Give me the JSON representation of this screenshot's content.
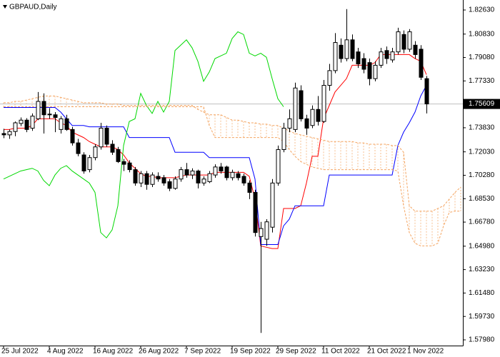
{
  "chart_data": {
    "type": "candlestick",
    "title": "GBPAUD,Daily",
    "categories": [
      "25 Jul 2022",
      null,
      null,
      null,
      null,
      null,
      null,
      null,
      "4 Aug 2022",
      null,
      null,
      null,
      null,
      null,
      null,
      null,
      "16 Aug 2022",
      null,
      null,
      null,
      null,
      null,
      null,
      null,
      "26 Aug 2022",
      null,
      null,
      null,
      null,
      null,
      null,
      null,
      "7 Sep 2022",
      null,
      null,
      null,
      null,
      null,
      null,
      null,
      "19 Sep 2022",
      null,
      null,
      null,
      null,
      null,
      null,
      null,
      "29 Sep 2022",
      null,
      null,
      null,
      null,
      null,
      null,
      null,
      "11 Oct 2022",
      null,
      null,
      null,
      null,
      null,
      null,
      null,
      "21 Oct 2022",
      null,
      null,
      null,
      null,
      null,
      null,
      "1 Nov 2022",
      null,
      null,
      null,
      null,
      null,
      null,
      null,
      null,
      null
    ],
    "open": [
      1.734,
      1.733,
      1.7355,
      1.7415,
      1.744,
      1.738,
      1.745,
      1.758,
      1.748,
      1.748,
      1.737,
      1.745,
      1.737,
      1.727,
      1.718,
      1.707,
      1.716,
      1.724,
      1.738,
      1.726,
      1.722,
      1.713,
      1.712,
      1.707,
      1.697,
      1.704,
      1.696,
      1.702,
      1.701,
      1.698,
      1.693,
      1.7,
      1.707,
      1.703,
      1.706,
      1.697,
      1.698,
      1.703,
      1.709,
      1.709,
      1.701,
      1.704,
      1.702,
      1.697,
      1.69,
      1.657,
      1.655,
      1.664,
      1.697,
      1.722,
      1.738,
      1.737,
      1.766,
      1.745,
      1.74,
      1.752,
      1.743,
      1.77,
      1.781,
      1.8,
      1.79,
      1.804,
      1.795,
      1.79,
      1.787,
      1.775,
      1.785,
      1.796,
      1.789,
      1.795,
      1.808,
      1.797,
      1.8,
      1.797,
      1.775,
      null,
      null,
      null,
      null,
      null,
      null
    ],
    "high": [
      1.7375,
      1.737,
      1.743,
      1.746,
      1.7455,
      1.749,
      1.765,
      1.764,
      1.753,
      1.75,
      1.747,
      1.748,
      1.739,
      1.73,
      1.72,
      1.718,
      1.726,
      1.742,
      1.74,
      1.729,
      1.724,
      1.715,
      1.714,
      1.709,
      1.706,
      1.706,
      1.705,
      1.705,
      1.703,
      1.7,
      1.702,
      1.709,
      1.712,
      1.708,
      1.707,
      1.702,
      1.706,
      1.711,
      1.712,
      1.71,
      1.707,
      1.706,
      1.704,
      1.699,
      1.692,
      1.668,
      1.67,
      1.7,
      1.725,
      1.742,
      1.752,
      1.772,
      1.77,
      1.748,
      1.755,
      1.762,
      1.774,
      1.786,
      1.809,
      1.805,
      1.827,
      1.808,
      1.798,
      1.794,
      1.79,
      1.788,
      1.798,
      1.799,
      1.798,
      1.813,
      1.811,
      1.812,
      1.803,
      1.8,
      1.777,
      null,
      null,
      null,
      null,
      null,
      null
    ],
    "low": [
      1.7305,
      1.73,
      1.732,
      1.7395,
      1.735,
      1.736,
      1.744,
      1.734,
      1.745,
      1.735,
      1.734,
      1.736,
      1.725,
      1.717,
      1.704,
      1.705,
      1.714,
      1.722,
      1.724,
      1.718,
      1.712,
      1.706,
      1.705,
      1.695,
      1.694,
      1.692,
      1.694,
      1.698,
      1.695,
      1.691,
      1.692,
      1.698,
      1.701,
      1.7,
      1.693,
      1.695,
      1.697,
      1.701,
      1.704,
      1.699,
      1.699,
      1.699,
      1.695,
      1.685,
      1.657,
      1.585,
      1.65,
      1.66,
      1.695,
      1.72,
      1.735,
      1.735,
      1.743,
      1.733,
      1.738,
      1.74,
      1.742,
      1.766,
      1.779,
      1.787,
      1.788,
      1.788,
      1.783,
      1.779,
      1.77,
      1.773,
      1.783,
      1.786,
      1.787,
      1.793,
      1.794,
      1.795,
      1.79,
      1.774,
      1.749,
      null,
      null,
      null,
      null,
      null,
      null
    ],
    "close": [
      1.733,
      1.7355,
      1.742,
      1.744,
      1.737,
      1.747,
      1.758,
      1.748,
      1.7485,
      1.746,
      1.745,
      1.737,
      1.727,
      1.719,
      1.706,
      1.716,
      1.724,
      1.738,
      1.726,
      1.72,
      1.713,
      1.711,
      1.707,
      1.697,
      1.704,
      1.696,
      1.703,
      1.7,
      1.697,
      1.693,
      1.7,
      1.707,
      1.703,
      1.706,
      1.697,
      1.7,
      1.704,
      1.709,
      1.706,
      1.701,
      1.705,
      1.701,
      1.697,
      1.69,
      1.66,
      1.663,
      1.668,
      1.697,
      1.722,
      1.738,
      1.745,
      1.768,
      1.745,
      1.738,
      1.752,
      1.743,
      1.77,
      1.781,
      1.802,
      1.79,
      1.804,
      1.79,
      1.786,
      1.782,
      1.775,
      1.785,
      1.795,
      1.79,
      1.795,
      1.81,
      1.797,
      1.81,
      1.793,
      1.776,
      1.7561,
      null,
      null,
      null,
      null,
      null,
      null
    ],
    "up_color": "#ffffff",
    "down_color": "#000000",
    "series": [
      {
        "color": "#ff0000",
        "values": [
          1.737,
          1.737,
          1.738,
          1.738,
          1.738,
          1.74,
          1.745,
          1.745,
          1.745,
          1.745,
          1.742,
          1.74,
          1.735,
          1.733,
          1.731,
          1.728,
          1.726,
          1.724,
          1.724,
          1.724,
          1.722,
          1.718,
          1.712,
          1.708,
          1.704,
          1.702,
          1.702,
          1.701,
          1.701,
          1.701,
          1.701,
          1.702,
          1.703,
          1.703,
          1.703,
          1.703,
          1.703,
          1.705,
          1.705,
          1.705,
          1.705,
          1.705,
          1.705,
          1.702,
          1.685,
          1.65,
          1.649,
          1.648,
          1.648,
          1.678,
          1.678,
          1.678,
          1.68,
          1.697,
          1.717,
          1.717,
          1.745,
          1.755,
          1.765,
          1.77,
          1.775,
          1.785,
          1.785,
          1.785,
          1.785,
          1.787,
          1.793,
          1.793,
          1.793,
          1.793,
          1.793,
          1.793,
          1.79,
          1.788,
          1.778,
          null,
          null,
          null,
          null,
          null,
          null
        ]
      },
      {
        "color": "#0000ff",
        "values": [
          1.7535,
          1.7535,
          1.7535,
          1.7535,
          1.7535,
          1.7535,
          1.7535,
          1.7535,
          1.7535,
          1.7535,
          1.75,
          1.745,
          1.74,
          1.74,
          1.74,
          1.739,
          1.739,
          1.739,
          1.739,
          1.739,
          1.739,
          1.739,
          1.731,
          1.731,
          1.731,
          1.731,
          1.731,
          1.731,
          1.731,
          1.731,
          1.72,
          1.72,
          1.72,
          1.72,
          1.72,
          1.72,
          1.716,
          1.716,
          1.716,
          1.716,
          1.716,
          1.716,
          1.716,
          1.716,
          1.7,
          1.651,
          1.651,
          1.651,
          1.651,
          1.665,
          1.67,
          1.68,
          1.68,
          1.68,
          1.68,
          1.68,
          1.68,
          1.703,
          1.703,
          1.703,
          1.703,
          1.703,
          1.703,
          1.703,
          1.703,
          1.703,
          1.703,
          1.703,
          1.703,
          1.725,
          1.735,
          1.742,
          1.75,
          1.762,
          1.77,
          null,
          null,
          null,
          null,
          null,
          null
        ]
      },
      {
        "color": "#00d800",
        "values": [
          1.7,
          1.702,
          1.704,
          1.706,
          1.707,
          1.708,
          1.706,
          1.699,
          1.695,
          1.703,
          1.708,
          1.71,
          1.706,
          1.703,
          1.7,
          1.697,
          1.69,
          1.66,
          1.656,
          1.662,
          1.68,
          1.725,
          1.743,
          1.745,
          1.764,
          1.755,
          1.749,
          1.758,
          1.75,
          1.758,
          1.796,
          1.8,
          1.804,
          1.798,
          1.788,
          1.773,
          1.78,
          1.79,
          1.792,
          1.794,
          1.805,
          1.81,
          1.808,
          1.794,
          1.792,
          1.794,
          1.791,
          1.775,
          1.76,
          1.754,
          null,
          null,
          null,
          null,
          null,
          null,
          null,
          null,
          null,
          null,
          null,
          null,
          null,
          null,
          null,
          null,
          null,
          null,
          null,
          null,
          null,
          null,
          null,
          null,
          null,
          null,
          null,
          null,
          null,
          null,
          null
        ]
      },
      {
        "color": "#f4a460",
        "dash": true,
        "values": [
          1.757,
          1.757,
          1.758,
          1.758,
          1.759,
          1.76,
          1.761,
          1.762,
          1.762,
          1.762,
          1.761,
          1.76,
          1.759,
          1.758,
          1.757,
          1.757,
          1.757,
          1.757,
          1.756,
          1.756,
          1.756,
          1.755,
          1.755,
          1.755,
          1.755,
          1.755,
          1.755,
          1.755,
          1.755,
          1.755,
          1.755,
          1.755,
          1.755,
          1.755,
          1.752,
          1.75,
          1.748,
          1.748,
          1.748,
          1.746,
          1.744,
          1.744,
          1.743,
          1.742,
          1.742,
          1.741,
          1.741,
          1.74,
          1.74,
          1.738,
          1.736,
          1.734,
          1.733,
          1.732,
          1.731,
          1.73,
          1.729,
          1.728,
          1.728,
          1.728,
          1.728,
          1.728,
          1.727,
          1.727,
          1.726,
          1.726,
          1.726,
          1.726,
          1.725,
          1.725,
          1.72,
          1.68,
          1.676,
          1.676,
          1.676,
          1.676,
          1.678,
          1.68,
          1.685,
          1.69,
          1.694
        ]
      },
      {
        "color": "#f4a460",
        "dash": true,
        "values": [
          1.754,
          1.754,
          1.754,
          1.754,
          1.754,
          1.754,
          1.754,
          1.754,
          1.754,
          1.754,
          1.754,
          1.754,
          1.754,
          1.754,
          1.754,
          1.754,
          1.754,
          1.754,
          1.754,
          1.754,
          1.754,
          1.754,
          1.754,
          1.754,
          1.754,
          1.754,
          1.754,
          1.754,
          1.754,
          1.754,
          1.754,
          1.754,
          1.754,
          1.754,
          1.754,
          1.754,
          1.74,
          1.731,
          1.731,
          1.731,
          1.731,
          1.731,
          1.731,
          1.731,
          1.731,
          1.731,
          1.731,
          1.731,
          1.731,
          1.728,
          1.722,
          1.717,
          1.713,
          1.711,
          1.709,
          1.708,
          1.707,
          1.707,
          1.707,
          1.707,
          1.707,
          1.707,
          1.707,
          1.707,
          1.707,
          1.707,
          1.707,
          1.707,
          1.707,
          1.706,
          1.68,
          1.66,
          1.652,
          1.65,
          1.65,
          1.65,
          1.652,
          1.665,
          1.675,
          1.676,
          1.676
        ]
      }
    ],
    "cloud_hatch": true,
    "last_price": 1.75609,
    "last_price_color": "#c0c0c0",
    "ylim": [
      1.57553,
      1.83377
    ],
    "yticks": [
      {
        "value": 1.8263,
        "label": "1.82630"
      },
      {
        "value": 1.8083,
        "label": "1.80830"
      },
      {
        "value": 1.7908,
        "label": "1.79080"
      },
      {
        "value": 1.7733,
        "label": "1.77330"
      },
      {
        "value": 1.7383,
        "label": "1.73830"
      },
      {
        "value": 1.7203,
        "label": "1.72030"
      },
      {
        "value": 1.7028,
        "label": "1.70280"
      },
      {
        "value": 1.6853,
        "label": "1.68530"
      },
      {
        "value": 1.6678,
        "label": "1.66780"
      },
      {
        "value": 1.6498,
        "label": "1.64980"
      },
      {
        "value": 1.6323,
        "label": "1.63230"
      },
      {
        "value": 1.6148,
        "label": "1.61480"
      },
      {
        "value": 1.5973,
        "label": "1.59730"
      },
      {
        "value": 1.5798,
        "label": "1.57980"
      }
    ]
  }
}
